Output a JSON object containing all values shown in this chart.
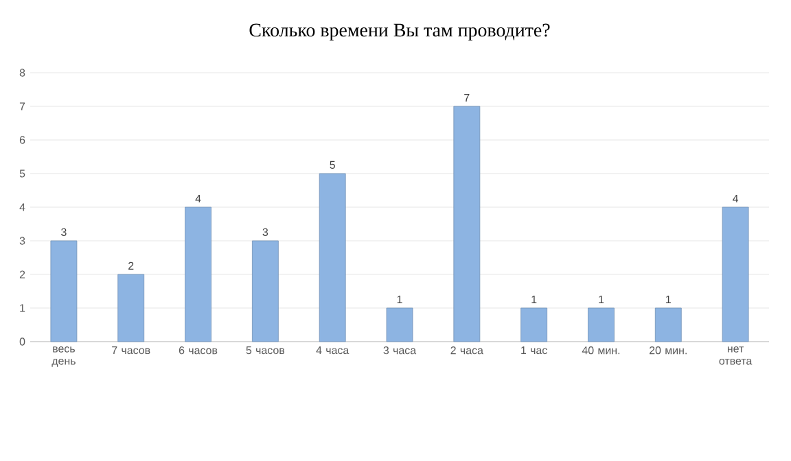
{
  "chart_data": {
    "type": "bar",
    "title": "Сколько времени Вы там проводите?",
    "categories": [
      "весь день",
      "7 часов",
      "6 часов",
      "5 часов",
      "4 часа",
      "3 часа",
      "2 часа",
      "1 час",
      "40 мин.",
      "20 мин.",
      "нет ответа"
    ],
    "values": [
      3,
      2,
      4,
      3,
      5,
      1,
      7,
      1,
      1,
      1,
      4
    ],
    "color": "#8db4e2",
    "ylim": [
      0,
      8
    ],
    "yticks": [
      0,
      1,
      2,
      3,
      4,
      5,
      6,
      7,
      8
    ],
    "grid": "y",
    "data_labels": true
  }
}
